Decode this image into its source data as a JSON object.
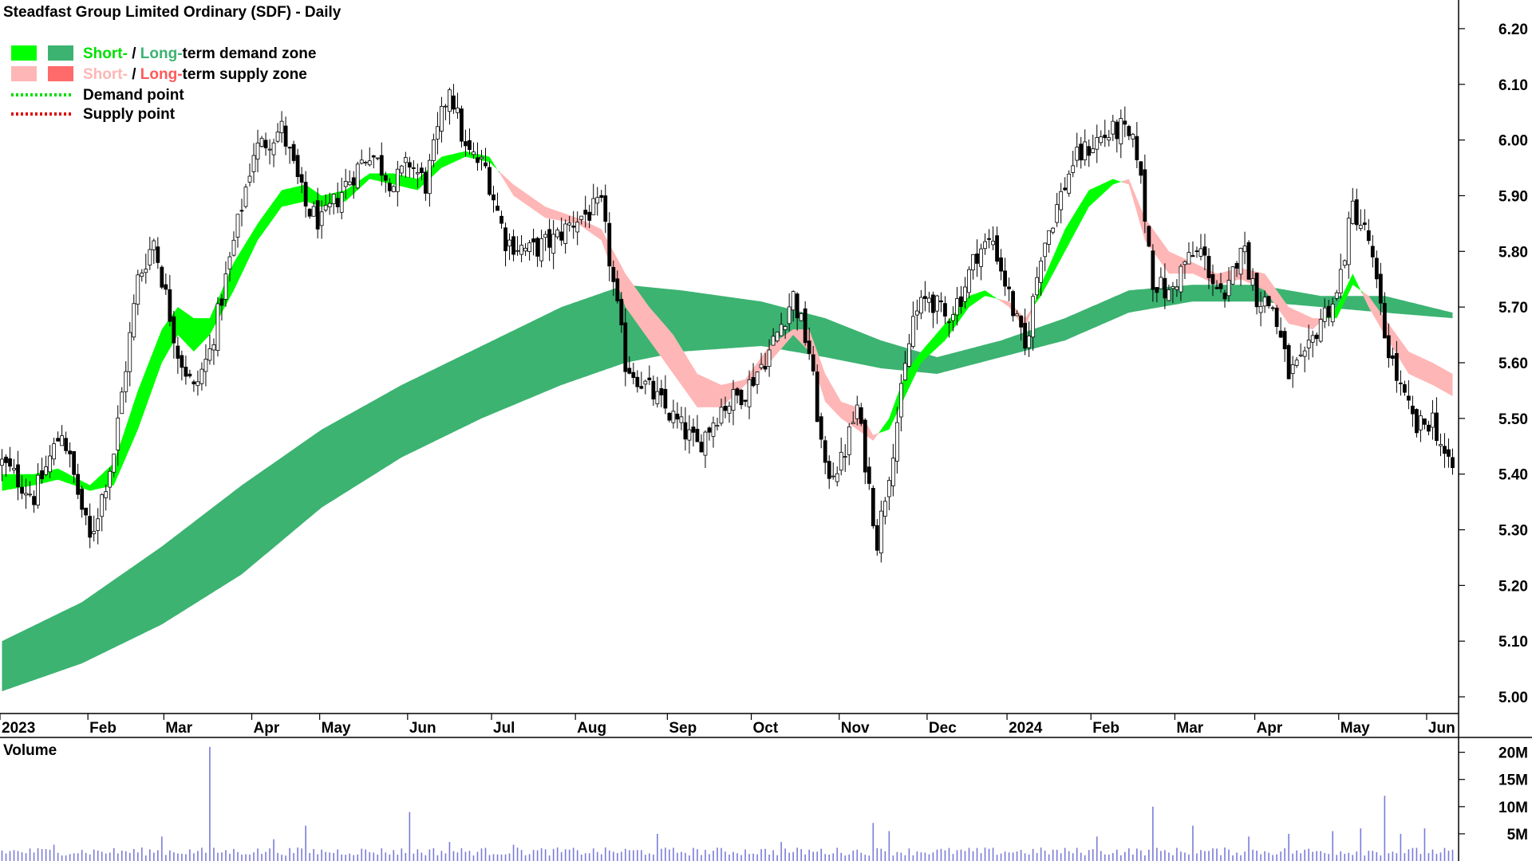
{
  "chart_data": {
    "type": "candlestick",
    "title": "Steadfast Group Limited Ordinary (SDF) - Daily",
    "legend": {
      "placement": "top-left",
      "demand_zone": {
        "short": "Short-",
        "sep": " / ",
        "long": "Long-",
        "rest": "term demand zone"
      },
      "supply_zone": {
        "short": "Short-",
        "sep": " / ",
        "long": "Long-",
        "rest": "term supply zone"
      },
      "demand_point": "Demand point",
      "supply_point": "Supply point"
    },
    "colors": {
      "short_demand": "#00ff00",
      "long_demand": "#3cb371",
      "short_supply": "#ffb6b6",
      "long_supply": "#ff6a2a",
      "demand_point": "#00dd00",
      "supply_point": "#dd0000",
      "volume_bars": "#7b7bd9",
      "volume_title": "#3a1a8a"
    },
    "price_axis": {
      "ticks": [
        "6.20",
        "6.10",
        "6.00",
        "5.90",
        "5.80",
        "5.70",
        "5.60",
        "5.50",
        "5.40",
        "5.30",
        "5.20",
        "5.10",
        "5.00"
      ],
      "range": [
        4.97,
        6.24
      ]
    },
    "month_labels": [
      {
        "label": "2023",
        "d": 0
      },
      {
        "label": "Feb",
        "d": 22
      },
      {
        "label": "Mar",
        "d": 41
      },
      {
        "label": "Apr",
        "d": 63
      },
      {
        "label": "May",
        "d": 80
      },
      {
        "label": "Jun",
        "d": 102
      },
      {
        "label": "Jul",
        "d": 123
      },
      {
        "label": "Aug",
        "d": 144
      },
      {
        "label": "Sep",
        "d": 167
      },
      {
        "label": "Oct",
        "d": 188
      },
      {
        "label": "Nov",
        "d": 210
      },
      {
        "label": "Dec",
        "d": 232
      },
      {
        "label": "2024",
        "d": 252
      },
      {
        "label": "Feb",
        "d": 273
      },
      {
        "label": "Mar",
        "d": 294
      },
      {
        "label": "Apr",
        "d": 314
      },
      {
        "label": "May",
        "d": 335
      },
      {
        "label": "Jun",
        "d": 357
      }
    ],
    "trading_days": 365,
    "close_path": [
      [
        0,
        5.42
      ],
      [
        8,
        5.36
      ],
      [
        15,
        5.48
      ],
      [
        22,
        5.28
      ],
      [
        28,
        5.44
      ],
      [
        34,
        5.75
      ],
      [
        38,
        5.82
      ],
      [
        44,
        5.62
      ],
      [
        48,
        5.55
      ],
      [
        52,
        5.62
      ],
      [
        56,
        5.75
      ],
      [
        63,
        5.98
      ],
      [
        70,
        6.02
      ],
      [
        76,
        5.88
      ],
      [
        80,
        5.85
      ],
      [
        86,
        5.92
      ],
      [
        92,
        5.98
      ],
      [
        98,
        5.92
      ],
      [
        102,
        5.96
      ],
      [
        106,
        5.92
      ],
      [
        112,
        6.1
      ],
      [
        116,
        5.98
      ],
      [
        121,
        5.95
      ],
      [
        126,
        5.82
      ],
      [
        132,
        5.8
      ],
      [
        138,
        5.82
      ],
      [
        144,
        5.86
      ],
      [
        150,
        5.88
      ],
      [
        156,
        5.6
      ],
      [
        162,
        5.55
      ],
      [
        168,
        5.5
      ],
      [
        174,
        5.45
      ],
      [
        180,
        5.52
      ],
      [
        186,
        5.55
      ],
      [
        192,
        5.62
      ],
      [
        198,
        5.72
      ],
      [
        202,
        5.62
      ],
      [
        206,
        5.4
      ],
      [
        210,
        5.42
      ],
      [
        214,
        5.52
      ],
      [
        219,
        5.28
      ],
      [
        223,
        5.45
      ],
      [
        228,
        5.68
      ],
      [
        232,
        5.72
      ],
      [
        236,
        5.68
      ],
      [
        240,
        5.72
      ],
      [
        244,
        5.8
      ],
      [
        248,
        5.82
      ],
      [
        252,
        5.72
      ],
      [
        256,
        5.62
      ],
      [
        260,
        5.8
      ],
      [
        264,
        5.88
      ],
      [
        268,
        5.96
      ],
      [
        274,
        6.0
      ],
      [
        280,
        6.02
      ],
      [
        284,
        5.98
      ],
      [
        288,
        5.75
      ],
      [
        292,
        5.72
      ],
      [
        296,
        5.78
      ],
      [
        300,
        5.8
      ],
      [
        306,
        5.7
      ],
      [
        310,
        5.82
      ],
      [
        314,
        5.72
      ],
      [
        318,
        5.7
      ],
      [
        322,
        5.58
      ],
      [
        326,
        5.6
      ],
      [
        330,
        5.68
      ],
      [
        334,
        5.72
      ],
      [
        338,
        5.88
      ],
      [
        342,
        5.82
      ],
      [
        346,
        5.65
      ],
      [
        350,
        5.55
      ],
      [
        354,
        5.48
      ],
      [
        358,
        5.5
      ],
      [
        362,
        5.41
      ]
    ],
    "candle_noise": 0.022,
    "short_term_zone": [
      [
        0,
        5.37,
        5.4
      ],
      [
        8,
        5.38,
        5.4
      ],
      [
        14,
        5.39,
        5.41
      ],
      [
        22,
        5.37,
        5.38
      ],
      [
        28,
        5.38,
        5.42
      ],
      [
        34,
        5.48,
        5.55
      ],
      [
        40,
        5.6,
        5.66
      ],
      [
        44,
        5.65,
        5.7
      ],
      [
        48,
        5.62,
        5.68
      ],
      [
        52,
        5.65,
        5.68
      ],
      [
        58,
        5.73,
        5.78
      ],
      [
        64,
        5.82,
        5.85
      ],
      [
        70,
        5.88,
        5.91
      ],
      [
        76,
        5.89,
        5.92
      ],
      [
        80,
        5.88,
        5.9
      ],
      [
        86,
        5.89,
        5.91
      ],
      [
        92,
        5.93,
        5.94
      ],
      [
        98,
        5.92,
        5.94
      ],
      [
        104,
        5.91,
        5.93
      ],
      [
        110,
        5.95,
        5.97
      ],
      [
        116,
        5.97,
        5.98
      ],
      [
        122,
        5.96,
        5.97
      ],
      [
        128,
        5.92,
        5.9
      ],
      [
        136,
        5.88,
        5.86
      ],
      [
        144,
        5.86,
        5.85
      ],
      [
        150,
        5.84,
        5.82
      ],
      [
        156,
        5.76,
        5.7
      ],
      [
        162,
        5.7,
        5.64
      ],
      [
        168,
        5.65,
        5.58
      ],
      [
        174,
        5.58,
        5.52
      ],
      [
        180,
        5.56,
        5.52
      ],
      [
        186,
        5.57,
        5.56
      ],
      [
        192,
        5.63,
        5.6
      ],
      [
        198,
        5.66,
        5.65
      ],
      [
        202,
        5.66,
        5.62
      ],
      [
        206,
        5.58,
        5.53
      ],
      [
        210,
        5.53,
        5.5
      ],
      [
        214,
        5.52,
        5.48
      ],
      [
        218,
        5.47,
        5.46
      ],
      [
        222,
        5.48,
        5.5
      ],
      [
        226,
        5.54,
        5.58
      ],
      [
        230,
        5.6,
        5.62
      ],
      [
        236,
        5.64,
        5.67
      ],
      [
        242,
        5.7,
        5.72
      ],
      [
        246,
        5.72,
        5.73
      ],
      [
        252,
        5.71,
        5.7
      ],
      [
        256,
        5.68,
        5.66
      ],
      [
        260,
        5.72,
        5.74
      ],
      [
        266,
        5.8,
        5.84
      ],
      [
        272,
        5.88,
        5.91
      ],
      [
        278,
        5.92,
        5.93
      ],
      [
        282,
        5.93,
        5.92
      ],
      [
        286,
        5.86,
        5.82
      ],
      [
        292,
        5.8,
        5.76
      ],
      [
        298,
        5.78,
        5.76
      ],
      [
        304,
        5.76,
        5.74
      ],
      [
        310,
        5.77,
        5.75
      ],
      [
        316,
        5.76,
        5.73
      ],
      [
        322,
        5.7,
        5.67
      ],
      [
        328,
        5.68,
        5.66
      ],
      [
        334,
        5.68,
        5.7
      ],
      [
        338,
        5.74,
        5.76
      ],
      [
        342,
        5.72,
        5.7
      ],
      [
        346,
        5.68,
        5.65
      ],
      [
        352,
        5.62,
        5.58
      ],
      [
        358,
        5.6,
        5.56
      ],
      [
        363,
        5.58,
        5.54
      ]
    ],
    "long_term_zone": [
      [
        0,
        5.01,
        5.1
      ],
      [
        20,
        5.06,
        5.17
      ],
      [
        40,
        5.13,
        5.27
      ],
      [
        60,
        5.22,
        5.38
      ],
      [
        80,
        5.34,
        5.48
      ],
      [
        100,
        5.43,
        5.56
      ],
      [
        120,
        5.5,
        5.63
      ],
      [
        140,
        5.56,
        5.7
      ],
      [
        156,
        5.6,
        5.74
      ],
      [
        170,
        5.62,
        5.73
      ],
      [
        190,
        5.63,
        5.71
      ],
      [
        206,
        5.61,
        5.68
      ],
      [
        220,
        5.59,
        5.64
      ],
      [
        234,
        5.58,
        5.61
      ],
      [
        250,
        5.61,
        5.64
      ],
      [
        266,
        5.64,
        5.68
      ],
      [
        282,
        5.69,
        5.73
      ],
      [
        298,
        5.71,
        5.74
      ],
      [
        314,
        5.71,
        5.74
      ],
      [
        330,
        5.7,
        5.72
      ],
      [
        346,
        5.69,
        5.72
      ],
      [
        363,
        5.68,
        5.69
      ]
    ],
    "volume": {
      "title": "Volume",
      "ticks": [
        "20M",
        "15M",
        "10M",
        "5M"
      ],
      "range": [
        0,
        22
      ],
      "base_min": 1.0,
      "base_max": 2.5,
      "spikes": [
        [
          13,
          3.0
        ],
        [
          40,
          4.5
        ],
        [
          52,
          21.0
        ],
        [
          68,
          4.0
        ],
        [
          76,
          6.5
        ],
        [
          102,
          9.0
        ],
        [
          112,
          3.5
        ],
        [
          128,
          3.0
        ],
        [
          164,
          5.0
        ],
        [
          195,
          3.5
        ],
        [
          218,
          7.0
        ],
        [
          222,
          5.5
        ],
        [
          274,
          4.5
        ],
        [
          288,
          10.0
        ],
        [
          298,
          6.5
        ],
        [
          312,
          4.5
        ],
        [
          322,
          5.0
        ],
        [
          333,
          5.5
        ],
        [
          340,
          6.0
        ],
        [
          346,
          12.0
        ],
        [
          350,
          5.0
        ],
        [
          356,
          6.0
        ]
      ]
    }
  }
}
